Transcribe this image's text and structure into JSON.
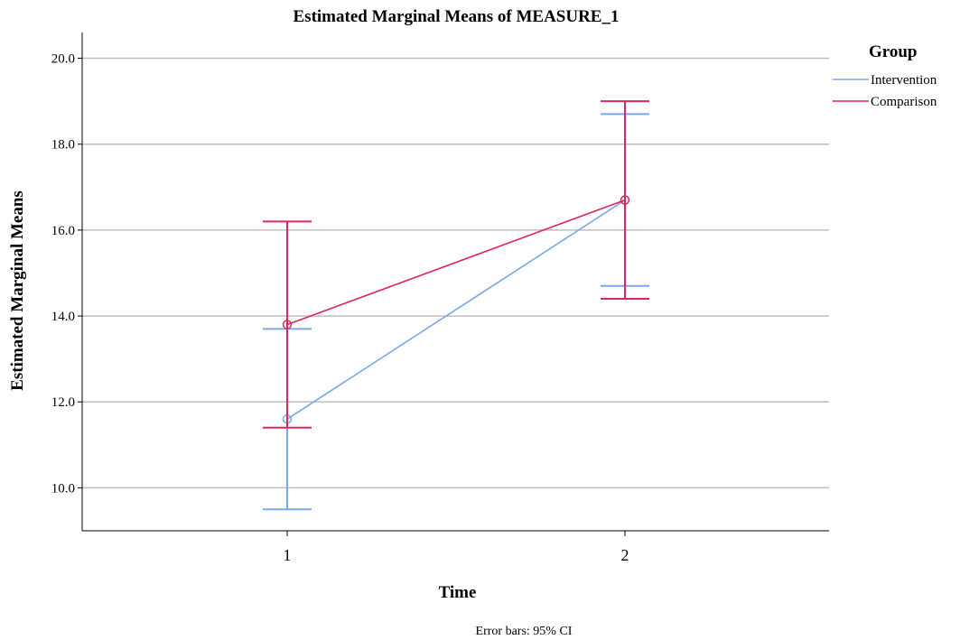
{
  "chart_data": {
    "type": "line",
    "title": "Estimated Marginal Means of MEASURE_1",
    "xlabel": "Time",
    "ylabel": "Estimated Marginal Means",
    "categories": [
      "1",
      "2"
    ],
    "y_ticks": [
      "10.0",
      "12.0",
      "14.0",
      "16.0",
      "18.0",
      "20.0"
    ],
    "ylim": [
      9.0,
      20.6
    ],
    "grid": true,
    "legend": {
      "title": "Group",
      "placement": "top-right"
    },
    "series": [
      {
        "name": "Intervention",
        "color": "#7aa8e8",
        "values": [
          11.6,
          16.7
        ],
        "ci_lower": [
          9.5,
          14.7
        ],
        "ci_upper": [
          13.7,
          18.7
        ]
      },
      {
        "name": "Comparison",
        "color": "#e0245e",
        "values": [
          13.8,
          16.7
        ],
        "ci_lower": [
          11.4,
          14.4
        ],
        "ci_upper": [
          16.2,
          19.0
        ]
      }
    ],
    "footnote": "Error bars: 95% CI"
  }
}
